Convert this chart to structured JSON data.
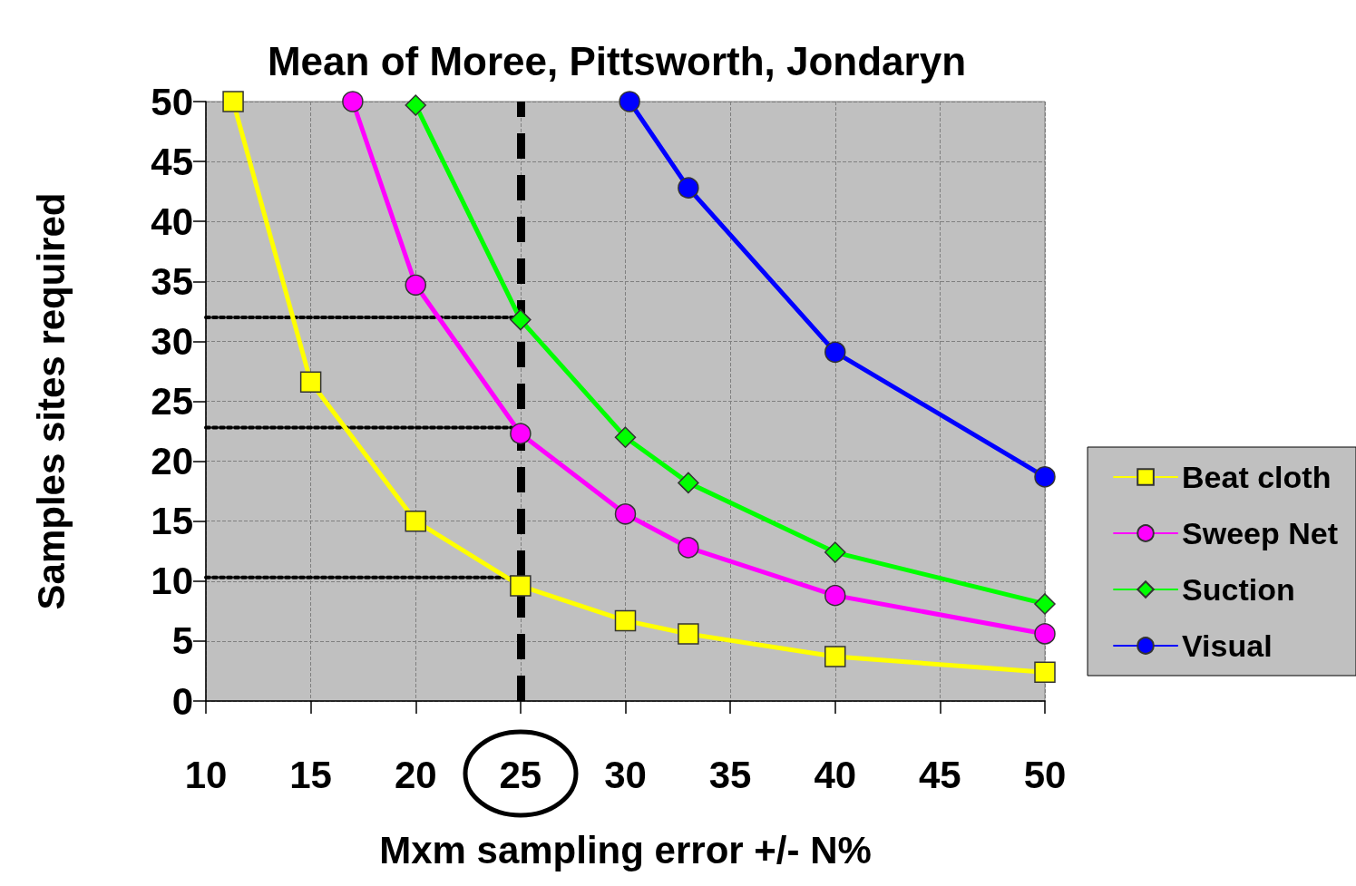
{
  "chart_data": {
    "type": "line",
    "title": "Mean of Moree, Pittsworth, Jondaryn",
    "xlabel": "Mxm sampling error +/- N%",
    "ylabel": "Samples sites required",
    "xlim": [
      10,
      50
    ],
    "xticks": [
      10,
      15,
      20,
      25,
      30,
      35,
      40,
      45,
      50
    ],
    "ylim": [
      0,
      50
    ],
    "yticks": [
      0,
      5,
      10,
      15,
      20,
      25,
      30,
      35,
      40,
      45,
      50
    ],
    "grid": true,
    "legend": "right",
    "line_style": "solid",
    "series": [
      {
        "name": "Beat cloth",
        "color": "#ffff00",
        "marker": "square",
        "x": [
          11.3,
          15,
          20,
          25,
          30,
          33,
          40,
          50
        ],
        "values": [
          50,
          26.6,
          15.0,
          9.6,
          6.7,
          5.6,
          3.7,
          2.4
        ]
      },
      {
        "name": "Sweep Net",
        "color": "#ff00ff",
        "marker": "circle",
        "x": [
          17.0,
          20,
          25,
          30,
          33,
          40,
          50
        ],
        "values": [
          50,
          34.7,
          22.3,
          15.6,
          12.8,
          8.8,
          5.6
        ]
      },
      {
        "name": "Suction",
        "color": "#00ff00",
        "marker": "diamond",
        "x": [
          20,
          25,
          30,
          33,
          40,
          50
        ],
        "values": [
          49.7,
          31.8,
          22.0,
          18.2,
          12.4,
          8.1
        ]
      },
      {
        "name": "Visual",
        "color": "#0000ff",
        "marker": "circle",
        "x": [
          30.2,
          33,
          40,
          50
        ],
        "values": [
          50,
          42.8,
          29.1,
          18.7
        ]
      },
      {
        "color": "#000000",
        "marker": "none",
        "line_style": "dotted",
        "x": [
          10,
          25
        ],
        "values": [
          32,
          32
        ]
      },
      {
        "color": "#000000",
        "marker": "none",
        "line_style": "dotted",
        "x": [
          10,
          25
        ],
        "values": [
          22.8,
          22.8
        ]
      },
      {
        "color": "#000000",
        "marker": "none",
        "line_style": "dotted",
        "x": [
          10,
          25
        ],
        "values": [
          10.3,
          10.3
        ]
      }
    ],
    "ref_lines": [
      {
        "axis": "x",
        "value": 25,
        "color": "#000000",
        "line_style": "dashed"
      }
    ]
  }
}
